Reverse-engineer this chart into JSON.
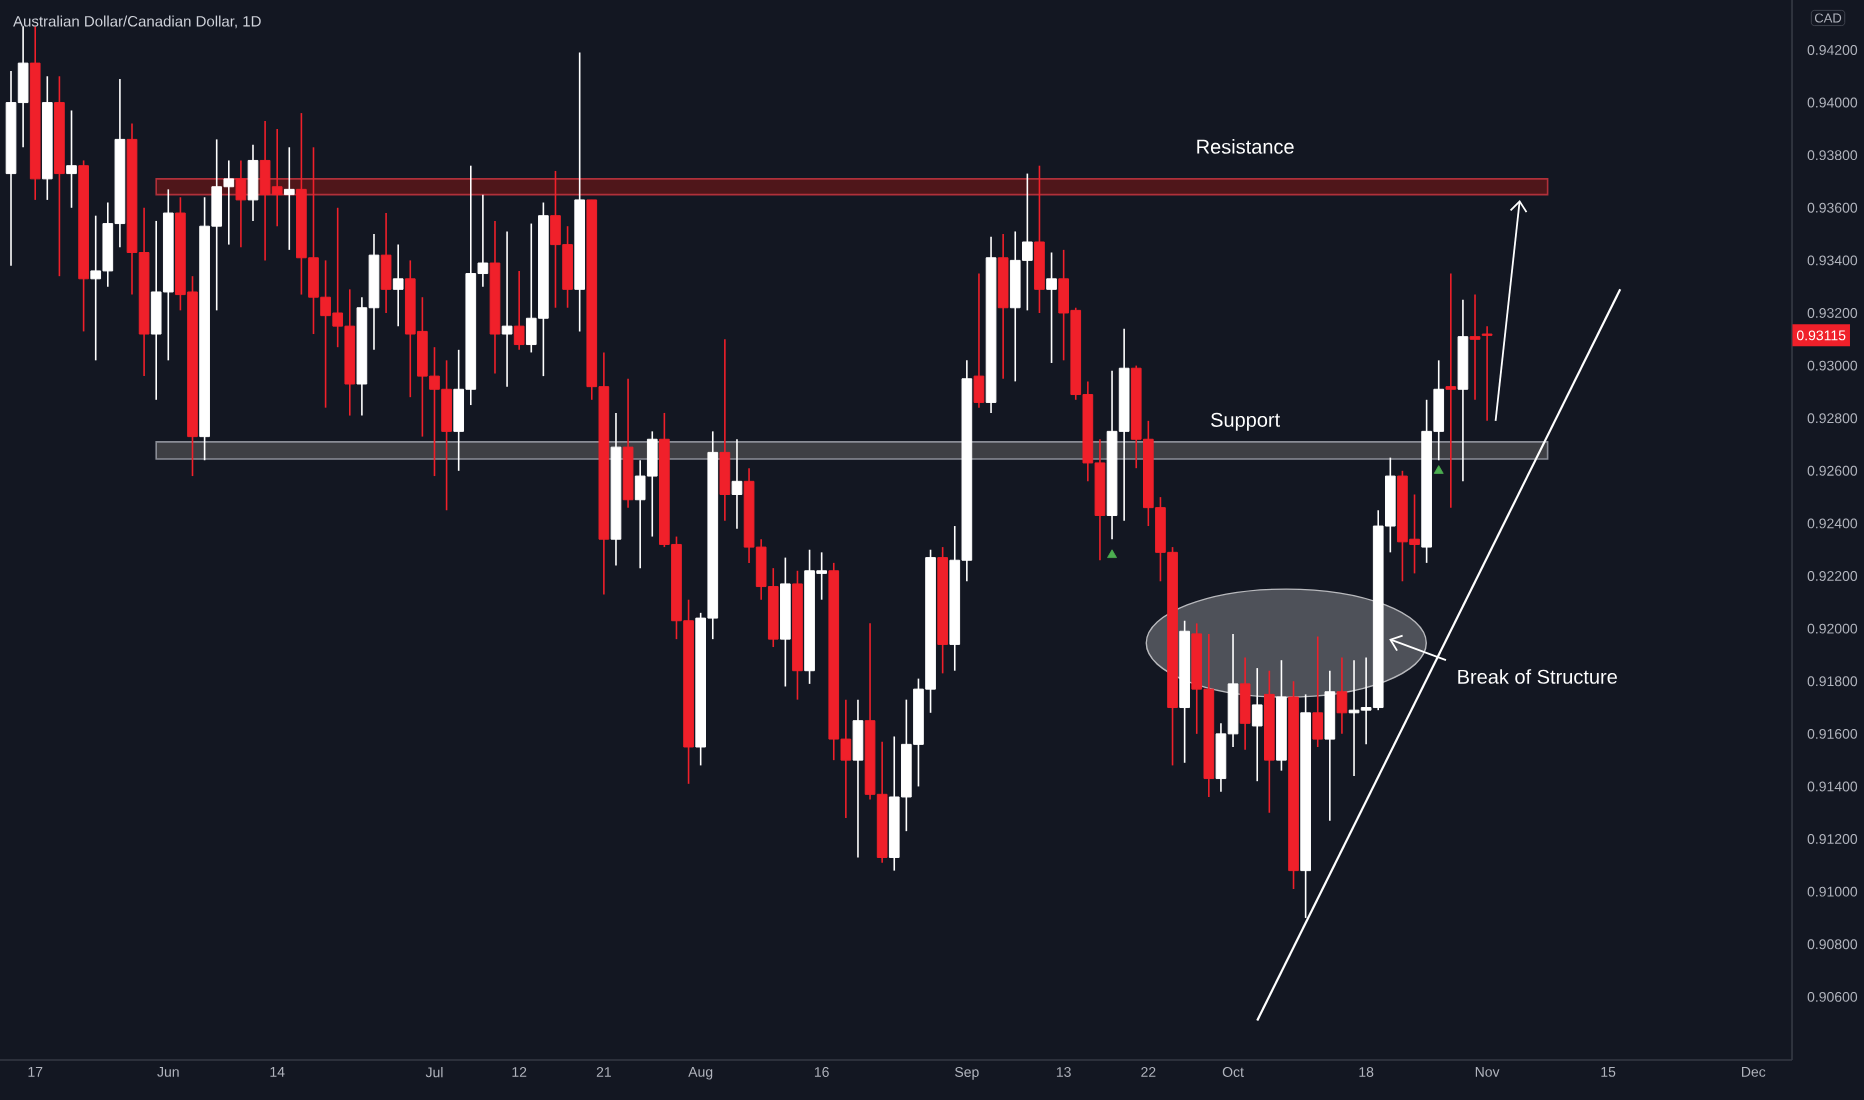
{
  "chart_data": {
    "type": "candlestick",
    "title": "Australian Dollar/Canadian Dollar, 1D",
    "ylabel": "CAD",
    "categories": [
      null,
      null,
      "17",
      null,
      null,
      null,
      null,
      null,
      null,
      null,
      null,
      null,
      null,
      "Jun",
      null,
      null,
      null,
      null,
      null,
      null,
      null,
      null,
      "14",
      null,
      null,
      null,
      null,
      null,
      null,
      null,
      null,
      null,
      null,
      null,
      null,
      "Jul",
      null,
      null,
      null,
      null,
      null,
      null,
      "12",
      null,
      null,
      null,
      null,
      null,
      null,
      "21",
      null,
      null,
      null,
      null,
      null,
      null,
      null,
      "Aug",
      null,
      null,
      null,
      null,
      null,
      null,
      null,
      null,
      null,
      "16",
      null,
      null,
      null,
      null,
      null,
      null,
      null,
      null,
      null,
      null,
      null,
      "Sep",
      null,
      null,
      null,
      null,
      null,
      null,
      null,
      "13",
      null,
      null,
      null,
      null,
      null,
      null,
      "22",
      null,
      null,
      null,
      null,
      null,
      null,
      "Oct",
      null,
      null,
      null,
      null,
      null,
      null,
      null,
      null,
      null,
      null,
      "18",
      null,
      null,
      null,
      null,
      null,
      null,
      null,
      null,
      null,
      "Nov",
      null,
      null,
      null,
      null,
      null,
      null,
      null,
      null,
      null,
      "15",
      null,
      null,
      null,
      null,
      null,
      null,
      null,
      null,
      null,
      null,
      null,
      "Dec",
      null,
      null
    ],
    "ohlc": [
      [
        0.9373,
        0.9412,
        0.9338,
        0.94
      ],
      [
        0.94,
        0.9429,
        0.9383,
        0.9415
      ],
      [
        0.9415,
        0.9429,
        0.9363,
        0.9371
      ],
      [
        0.9371,
        0.941,
        0.9363,
        0.94
      ],
      [
        0.94,
        0.941,
        0.9334,
        0.9373
      ],
      [
        0.9373,
        0.9397,
        0.936,
        0.9376
      ],
      [
        0.9376,
        0.9378,
        0.9313,
        0.9333
      ],
      [
        0.9333,
        0.9357,
        0.9302,
        0.9336
      ],
      [
        0.9336,
        0.9362,
        0.933,
        0.9354
      ],
      [
        0.9354,
        0.9409,
        0.9345,
        0.9386
      ],
      [
        0.9386,
        0.9392,
        0.9327,
        0.9343
      ],
      [
        0.9343,
        0.936,
        0.9296,
        0.9312
      ],
      [
        0.9312,
        0.9355,
        0.9287,
        0.9328
      ],
      [
        0.9328,
        0.9367,
        0.9302,
        0.9358
      ],
      [
        0.9358,
        0.9364,
        0.9321,
        0.9327
      ],
      [
        0.9328,
        0.9334,
        0.9258,
        0.9273
      ],
      [
        0.9273,
        0.9364,
        0.9264,
        0.9353
      ],
      [
        0.9353,
        0.9386,
        0.9321,
        0.9368
      ],
      [
        0.9368,
        0.9378,
        0.9346,
        0.9371
      ],
      [
        0.9371,
        0.9378,
        0.9345,
        0.9363
      ],
      [
        0.9363,
        0.9384,
        0.9355,
        0.9378
      ],
      [
        0.9378,
        0.9393,
        0.934,
        0.9365
      ],
      [
        0.9368,
        0.939,
        0.9353,
        0.9365
      ],
      [
        0.9365,
        0.9383,
        0.9344,
        0.9367
      ],
      [
        0.9367,
        0.9396,
        0.9327,
        0.9341
      ],
      [
        0.9341,
        0.9383,
        0.9312,
        0.9326
      ],
      [
        0.9326,
        0.934,
        0.9284,
        0.9319
      ],
      [
        0.932,
        0.936,
        0.9307,
        0.9315
      ],
      [
        0.9315,
        0.9329,
        0.9281,
        0.9293
      ],
      [
        0.9293,
        0.9326,
        0.9281,
        0.9322
      ],
      [
        0.9322,
        0.935,
        0.9306,
        0.9342
      ],
      [
        0.9342,
        0.9358,
        0.932,
        0.9329
      ],
      [
        0.9329,
        0.9346,
        0.9315,
        0.9333
      ],
      [
        0.9333,
        0.934,
        0.9288,
        0.9312
      ],
      [
        0.9313,
        0.9326,
        0.9273,
        0.9296
      ],
      [
        0.9296,
        0.9307,
        0.9258,
        0.9291
      ],
      [
        0.9291,
        0.9302,
        0.9245,
        0.9275
      ],
      [
        0.9275,
        0.9306,
        0.926,
        0.9291
      ],
      [
        0.9291,
        0.9376,
        0.9285,
        0.9335
      ],
      [
        0.9335,
        0.9365,
        0.933,
        0.9339
      ],
      [
        0.9339,
        0.9355,
        0.9297,
        0.9312
      ],
      [
        0.9312,
        0.9351,
        0.9292,
        0.9315
      ],
      [
        0.9315,
        0.9336,
        0.9306,
        0.9308
      ],
      [
        0.9308,
        0.9354,
        0.9305,
        0.9318
      ],
      [
        0.9318,
        0.9362,
        0.9296,
        0.9357
      ],
      [
        0.9357,
        0.9374,
        0.9322,
        0.9346
      ],
      [
        0.9346,
        0.9353,
        0.9322,
        0.9329
      ],
      [
        0.9329,
        0.9419,
        0.9313,
        0.9363
      ],
      [
        0.9363,
        0.9363,
        0.9287,
        0.9292
      ],
      [
        0.9292,
        0.9305,
        0.9213,
        0.9234
      ],
      [
        0.9234,
        0.9282,
        0.9224,
        0.9269
      ],
      [
        0.9269,
        0.9295,
        0.9246,
        0.9249
      ],
      [
        0.9249,
        0.9264,
        0.9223,
        0.9258
      ],
      [
        0.9258,
        0.9275,
        0.9235,
        0.9272
      ],
      [
        0.9272,
        0.9282,
        0.9231,
        0.9232
      ],
      [
        0.9232,
        0.9235,
        0.9196,
        0.9203
      ],
      [
        0.9203,
        0.9211,
        0.9141,
        0.9155
      ],
      [
        0.9155,
        0.9206,
        0.9148,
        0.9204
      ],
      [
        0.9204,
        0.9275,
        0.9196,
        0.9267
      ],
      [
        0.9267,
        0.931,
        0.9241,
        0.9251
      ],
      [
        0.9251,
        0.9272,
        0.9238,
        0.9256
      ],
      [
        0.9256,
        0.9261,
        0.9225,
        0.9231
      ],
      [
        0.9231,
        0.9234,
        0.9211,
        0.9216
      ],
      [
        0.9216,
        0.9223,
        0.9193,
        0.9196
      ],
      [
        0.9196,
        0.9227,
        0.9178,
        0.9217
      ],
      [
        0.9217,
        0.9222,
        0.9173,
        0.9184
      ],
      [
        0.9184,
        0.923,
        0.9179,
        0.9222
      ],
      [
        0.9221,
        0.9229,
        0.9211,
        0.9222
      ],
      [
        0.9222,
        0.9225,
        0.915,
        0.9158
      ],
      [
        0.9158,
        0.9173,
        0.9128,
        0.915
      ],
      [
        0.915,
        0.9173,
        0.9113,
        0.9165
      ],
      [
        0.9165,
        0.9202,
        0.9135,
        0.9137
      ],
      [
        0.9137,
        0.9157,
        0.9111,
        0.9113
      ],
      [
        0.9113,
        0.9159,
        0.9108,
        0.9136
      ],
      [
        0.9136,
        0.9173,
        0.9123,
        0.9156
      ],
      [
        0.9156,
        0.9181,
        0.914,
        0.9177
      ],
      [
        0.9177,
        0.923,
        0.9168,
        0.9227
      ],
      [
        0.9227,
        0.9231,
        0.9183,
        0.9194
      ],
      [
        0.9194,
        0.9239,
        0.9184,
        0.9226
      ],
      [
        0.9226,
        0.9302,
        0.9218,
        0.9295
      ],
      [
        0.9296,
        0.9335,
        0.9284,
        0.9286
      ],
      [
        0.9286,
        0.9349,
        0.9282,
        0.9341
      ],
      [
        0.9341,
        0.935,
        0.9295,
        0.9322
      ],
      [
        0.9322,
        0.9351,
        0.9294,
        0.934
      ],
      [
        0.934,
        0.9373,
        0.9321,
        0.9347
      ],
      [
        0.9347,
        0.9376,
        0.932,
        0.9329
      ],
      [
        0.9329,
        0.9343,
        0.9301,
        0.9333
      ],
      [
        0.9333,
        0.9344,
        0.9302,
        0.932
      ],
      [
        0.9321,
        0.9322,
        0.9287,
        0.9289
      ],
      [
        0.9289,
        0.9294,
        0.9256,
        0.9263
      ],
      [
        0.9263,
        0.9272,
        0.9226,
        0.9243
      ],
      [
        0.9243,
        0.9298,
        0.9234,
        0.9275
      ],
      [
        0.9275,
        0.9314,
        0.9241,
        0.9299
      ],
      [
        0.9299,
        0.93,
        0.9261,
        0.9272
      ],
      [
        0.9272,
        0.9279,
        0.9239,
        0.9246
      ],
      [
        0.9246,
        0.925,
        0.9218,
        0.9229
      ],
      [
        0.9229,
        0.9231,
        0.9148,
        0.917
      ],
      [
        0.917,
        0.9203,
        0.9149,
        0.9199
      ],
      [
        0.9198,
        0.9202,
        0.916,
        0.9177
      ],
      [
        0.9177,
        0.9198,
        0.9136,
        0.9143
      ],
      [
        0.9143,
        0.9164,
        0.9138,
        0.916
      ],
      [
        0.916,
        0.9198,
        0.9155,
        0.9179
      ],
      [
        0.9179,
        0.9189,
        0.9154,
        0.9164
      ],
      [
        0.9163,
        0.9185,
        0.9142,
        0.9171
      ],
      [
        0.9175,
        0.9184,
        0.913,
        0.915
      ],
      [
        0.915,
        0.9188,
        0.9146,
        0.9174
      ],
      [
        0.9174,
        0.918,
        0.9101,
        0.9108
      ],
      [
        0.9108,
        0.9175,
        0.909,
        0.9168
      ],
      [
        0.9168,
        0.9197,
        0.9155,
        0.9158
      ],
      [
        0.9158,
        0.9184,
        0.9127,
        0.9176
      ],
      [
        0.9176,
        0.9189,
        0.916,
        0.9168
      ],
      [
        0.9168,
        0.9188,
        0.9144,
        0.9169
      ],
      [
        0.9169,
        0.9189,
        0.9156,
        0.917
      ],
      [
        0.917,
        0.9245,
        0.9169,
        0.9239
      ],
      [
        0.9239,
        0.9265,
        0.9229,
        0.9258
      ],
      [
        0.9258,
        0.926,
        0.9218,
        0.9233
      ],
      [
        0.9234,
        0.9251,
        0.9221,
        0.9232
      ],
      [
        0.9231,
        0.9287,
        0.9225,
        0.9275
      ],
      [
        0.9275,
        0.9302,
        0.9264,
        0.9291
      ],
      [
        0.9292,
        0.9335,
        0.9246,
        0.9291
      ],
      [
        0.9291,
        0.9325,
        0.9256,
        0.9311
      ],
      [
        0.9311,
        0.9327,
        0.9287,
        0.931
      ],
      [
        0.9312,
        0.9315,
        0.9279,
        0.93115
      ],
      null,
      null,
      null,
      null,
      null,
      null,
      null,
      null,
      null,
      null,
      null,
      null,
      null,
      null,
      null,
      null,
      null,
      null,
      null,
      null,
      null,
      null,
      null,
      null
    ],
    "series": [
      {
        "type": "scatter",
        "marker": "triangle",
        "color": "#4caf50",
        "values": [
          null,
          null,
          null,
          null,
          null,
          null,
          null,
          null,
          null,
          null,
          null,
          null,
          null,
          null,
          null,
          null,
          null,
          null,
          null,
          null,
          null,
          null,
          null,
          null,
          null,
          null,
          null,
          null,
          null,
          null,
          null,
          null,
          null,
          null,
          null,
          null,
          null,
          null,
          null,
          null,
          null,
          null,
          null,
          null,
          null,
          null,
          null,
          null,
          null,
          null,
          null,
          null,
          null,
          null,
          null,
          null,
          null,
          null,
          null,
          null,
          null,
          null,
          null,
          null,
          null,
          null,
          null,
          null,
          null,
          null,
          null,
          null,
          null,
          null,
          null,
          null,
          null,
          null,
          null,
          null,
          null,
          null,
          null,
          null,
          null,
          null,
          null,
          null,
          null,
          null,
          null,
          0.9228,
          null,
          null,
          null,
          null,
          null,
          null,
          null,
          null,
          null,
          null,
          null,
          null,
          null,
          null,
          null,
          null,
          null,
          null,
          null,
          null,
          null,
          null,
          null,
          null,
          null,
          null,
          0.926,
          null,
          null,
          null,
          null,
          null,
          null,
          null,
          null,
          null,
          null,
          null,
          null,
          null,
          null,
          null,
          null,
          null,
          null,
          null,
          null,
          null,
          null,
          null,
          null,
          null,
          null,
          null,
          null
        ]
      },
      {
        "type": "line",
        "color": "#ffffff",
        "values": [
          null,
          null,
          null,
          null,
          null,
          null,
          null,
          null,
          null,
          null,
          null,
          null,
          null,
          null,
          null,
          null,
          null,
          null,
          null,
          null,
          null,
          null,
          null,
          null,
          null,
          null,
          null,
          null,
          null,
          null,
          null,
          null,
          null,
          null,
          null,
          null,
          null,
          null,
          null,
          null,
          null,
          null,
          null,
          null,
          null,
          null,
          null,
          null,
          null,
          null,
          null,
          null,
          null,
          null,
          null,
          null,
          null,
          null,
          null,
          null,
          null,
          null,
          null,
          null,
          null,
          null,
          null,
          null,
          null,
          null,
          null,
          null,
          null,
          null,
          null,
          null,
          null,
          null,
          null,
          null,
          null,
          null,
          null,
          null,
          null,
          null,
          null,
          null,
          null,
          null,
          null,
          null,
          null,
          null,
          null,
          null,
          null,
          null,
          null,
          null,
          null,
          null,
          null,
          0.9051,
          null,
          null,
          null,
          null,
          null,
          null,
          null,
          null,
          null,
          null,
          null,
          null,
          null,
          null,
          null,
          null,
          null,
          null,
          null,
          null,
          null,
          null,
          null,
          null,
          null,
          null,
          null,
          null,
          null,
          0.9329,
          null,
          null,
          null,
          null,
          null,
          null,
          null,
          null,
          null,
          null,
          null,
          null,
          null
        ]
      }
    ],
    "bands": [
      {
        "axis": "y",
        "from": 0.9365,
        "to": 0.9371,
        "label": "Resistance",
        "color": "#b0303a"
      },
      {
        "axis": "y",
        "from": 0.92645,
        "to": 0.9271,
        "label": "Support",
        "color": "#8a8d96"
      }
    ],
    "annotations": [
      "Break of Structure",
      {
        "text": "0.93115",
        "y": 0.93115
      }
    ],
    "ylim": [
      0.9036,
      0.9439
    ],
    "yticks": [
      {
        "value": 0.906,
        "label": "0.90600"
      },
      {
        "value": 0.908,
        "label": "0.90800"
      },
      {
        "value": 0.91,
        "label": "0.91000"
      },
      {
        "value": 0.912,
        "label": "0.91200"
      },
      {
        "value": 0.914,
        "label": "0.91400"
      },
      {
        "value": 0.916,
        "label": "0.91600"
      },
      {
        "value": 0.918,
        "label": "0.91800"
      },
      {
        "value": 0.92,
        "label": "0.92000"
      },
      {
        "value": 0.922,
        "label": "0.92200"
      },
      {
        "value": 0.924,
        "label": "0.92400"
      },
      {
        "value": 0.926,
        "label": "0.92600"
      },
      {
        "value": 0.928,
        "label": "0.92800"
      },
      {
        "value": 0.93,
        "label": "0.93000"
      },
      {
        "value": 0.932,
        "label": "0.93200"
      },
      {
        "value": 0.934,
        "label": "0.93400"
      },
      {
        "value": 0.936,
        "label": "0.93600"
      },
      {
        "value": 0.938,
        "label": "0.93800"
      },
      {
        "value": 0.94,
        "label": "0.94000"
      },
      {
        "value": 0.942,
        "label": "0.94200"
      }
    ]
  }
}
